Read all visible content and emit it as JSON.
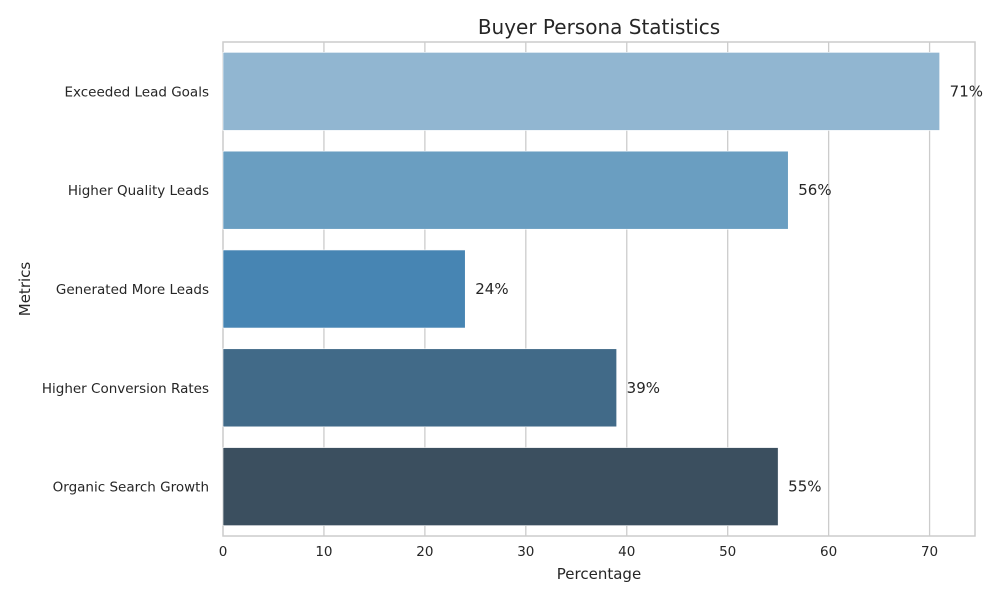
{
  "chart_data": {
    "type": "bar",
    "orientation": "horizontal",
    "title": "Buyer Persona Statistics",
    "xlabel": "Percentage",
    "ylabel": "Metrics",
    "xlim": [
      0,
      74.5
    ],
    "xticks": [
      0,
      10,
      20,
      30,
      40,
      50,
      60,
      70
    ],
    "categories": [
      "Exceeded Lead Goals",
      "Higher Quality Leads",
      "Generated More Leads",
      "Higher Conversion Rates",
      "Organic Search Growth"
    ],
    "values": [
      71,
      56,
      24,
      39,
      55
    ],
    "value_labels": [
      "71%",
      "56%",
      "24%",
      "39%",
      "55%"
    ],
    "colors": [
      "#91b6d1",
      "#6a9ec1",
      "#4785b3",
      "#416a88",
      "#3b4f5f"
    ],
    "grid": "vertical",
    "legend": "none"
  }
}
